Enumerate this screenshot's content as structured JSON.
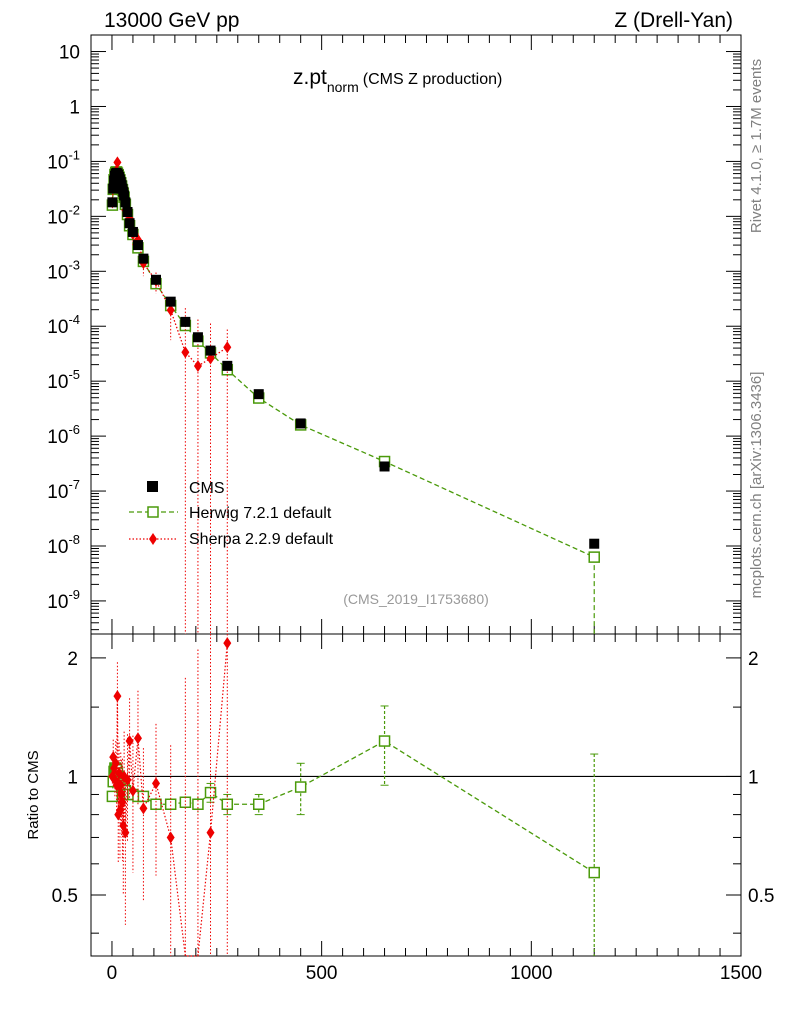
{
  "header": {
    "left": "13000 GeV pp",
    "right": "Z (Drell-Yan)"
  },
  "side_text": {
    "rivet": "Rivet 4.1.0, ≥ 1.7M events",
    "mcplots": "mcplots.cern.ch [arXiv:1306.3436]"
  },
  "chart_data": {
    "type": "scatter",
    "title_main": "z.pt",
    "title_sub": "norm",
    "title_rest": "(CMS Z production)",
    "analysis_label": "(CMS_2019_I1753680)",
    "xlim": [
      -50,
      1500
    ],
    "ylim_log": [
      2.5e-10,
      20
    ],
    "ratio_ylim": [
      0.35,
      2.3
    ],
    "ratio_ylabel": "Ratio to CMS",
    "x_ticks": [
      "0",
      "500",
      "1000",
      "1500"
    ],
    "y_ticks": [
      "10",
      "1",
      "10^-1",
      "10^-2",
      "10^-3",
      "10^-4",
      "10^-5",
      "10^-6",
      "10^-7",
      "10^-8",
      "10^-9"
    ],
    "ratio_ticks": [
      "0.5",
      "1",
      "2"
    ],
    "legend": [
      {
        "name": "CMS",
        "color": "#000000"
      },
      {
        "name": "Herwig 7.2.1 default",
        "color": "#4a9a0a"
      },
      {
        "name": "Sherpa 2.2.9 default",
        "color": "#ee0000"
      }
    ],
    "series": [
      {
        "name": "CMS",
        "x": [
          1,
          3,
          5,
          7,
          9,
          11,
          13,
          15,
          17,
          19,
          21,
          23,
          25,
          27,
          29,
          32,
          37,
          42,
          50,
          62,
          75,
          105,
          140,
          175,
          205,
          235,
          275,
          350,
          450,
          650,
          1150
        ],
        "y": [
          0.018,
          0.032,
          0.045,
          0.055,
          0.06,
          0.062,
          0.06,
          0.057,
          0.052,
          0.047,
          0.042,
          0.037,
          0.032,
          0.028,
          0.024,
          0.018,
          0.012,
          0.0075,
          0.0052,
          0.003,
          0.0017,
          0.0007,
          0.00028,
          0.00012,
          6.3e-05,
          3.6e-05,
          1.9e-05,
          5.8e-06,
          1.7e-06,
          2.8e-07,
          1.1e-08
        ]
      },
      {
        "name": "Herwig 7.2.1 default",
        "x": [
          1,
          3,
          5,
          7,
          9,
          11,
          13,
          15,
          17,
          19,
          21,
          23,
          25,
          27,
          29,
          32,
          37,
          42,
          50,
          62,
          75,
          105,
          140,
          175,
          205,
          235,
          275,
          350,
          450,
          650,
          1150
        ],
        "ratio": [
          0.89,
          0.97,
          1.03,
          1.05,
          1.05,
          1.04,
          1.02,
          1.0,
          0.99,
          0.98,
          0.97,
          0.96,
          0.95,
          0.94,
          0.93,
          0.92,
          0.9,
          0.9,
          0.9,
          0.89,
          0.89,
          0.85,
          0.85,
          0.86,
          0.85,
          0.91,
          0.85,
          0.85,
          0.94,
          1.23,
          0.57
        ],
        "ratio_err": [
          0.02,
          0.01,
          0.01,
          0.01,
          0.01,
          0.01,
          0.01,
          0.01,
          0.01,
          0.01,
          0.01,
          0.01,
          0.01,
          0.01,
          0.01,
          0.02,
          0.02,
          0.02,
          0.02,
          0.03,
          0.03,
          0.03,
          0.03,
          0.03,
          0.04,
          0.05,
          0.05,
          0.05,
          0.14,
          0.28,
          0.57
        ]
      },
      {
        "name": "Sherpa 2.2.9 default",
        "x": [
          1,
          3,
          5,
          7,
          9,
          11,
          13,
          15,
          17,
          19,
          21,
          23,
          25,
          27,
          29,
          32,
          37,
          42,
          50,
          62,
          75,
          105,
          140,
          175,
          205,
          235,
          275
        ],
        "ratio": [
          1.0,
          1.12,
          1.05,
          0.98,
          1.08,
          0.95,
          1.6,
          0.8,
          1.02,
          0.82,
          0.95,
          0.9,
          0.86,
          0.75,
          1.0,
          0.72,
          0.98,
          1.23,
          0.92,
          1.25,
          0.83,
          0.96,
          0.7,
          0.28,
          0.3,
          0.72,
          2.18
        ],
        "ratio_err": [
          0.05,
          0.12,
          0.1,
          0.1,
          0.15,
          0.15,
          0.35,
          0.2,
          0.2,
          0.2,
          0.2,
          0.2,
          0.25,
          0.25,
          0.3,
          0.3,
          0.3,
          0.35,
          0.35,
          0.4,
          0.35,
          0.4,
          0.5,
          1.5,
          1.8,
          2.4,
          2.4
        ]
      }
    ]
  }
}
